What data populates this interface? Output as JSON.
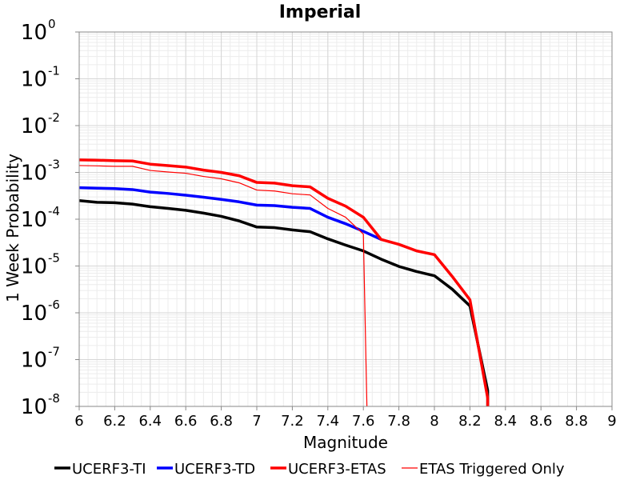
{
  "chart_data": {
    "type": "line",
    "title": "Imperial",
    "xlabel": "Magnitude",
    "ylabel": "1 Week Probability",
    "xlim": [
      6,
      9
    ],
    "ylim": [
      1e-08,
      1
    ],
    "yscale": "log",
    "grid": true,
    "legend_position": "bottom",
    "x_ticks": [
      "6",
      "6.2",
      "6.4",
      "6.6",
      "6.8",
      "7",
      "7.2",
      "7.4",
      "7.6",
      "7.8",
      "8",
      "8.2",
      "8.4",
      "8.6",
      "8.8",
      "9"
    ],
    "y_ticks": [
      {
        "base": "10",
        "exp": "0"
      },
      {
        "base": "10",
        "exp": "-1"
      },
      {
        "base": "10",
        "exp": "-2"
      },
      {
        "base": "10",
        "exp": "-3"
      },
      {
        "base": "10",
        "exp": "-4"
      },
      {
        "base": "10",
        "exp": "-5"
      },
      {
        "base": "10",
        "exp": "-6"
      },
      {
        "base": "10",
        "exp": "-7"
      },
      {
        "base": "10",
        "exp": "-8"
      }
    ],
    "series": [
      {
        "name": "UCERF3-TI",
        "color": "#000000",
        "width": 3.5,
        "points": [
          [
            6.0,
            0.00025
          ],
          [
            6.1,
            0.00023
          ],
          [
            6.2,
            0.000225
          ],
          [
            6.3,
            0.00021
          ],
          [
            6.4,
            0.000185
          ],
          [
            6.5,
            0.00017
          ],
          [
            6.6,
            0.000155
          ],
          [
            6.7,
            0.000135
          ],
          [
            6.8,
            0.000115
          ],
          [
            6.9,
            9.2e-05
          ],
          [
            7.0,
            6.8e-05
          ],
          [
            7.1,
            6.6e-05
          ],
          [
            7.2,
            5.9e-05
          ],
          [
            7.3,
            5.4e-05
          ],
          [
            7.4,
            3.8e-05
          ],
          [
            7.5,
            2.8e-05
          ],
          [
            7.6,
            2.1e-05
          ],
          [
            7.7,
            1.4e-05
          ],
          [
            7.8,
            9.8e-06
          ],
          [
            7.9,
            7.6e-06
          ],
          [
            8.0,
            6.2e-06
          ],
          [
            8.1,
            3.2e-06
          ],
          [
            8.2,
            1.4e-06
          ],
          [
            8.3,
            2.2e-08
          ],
          [
            8.3,
            1e-08
          ]
        ]
      },
      {
        "name": "UCERF3-TD",
        "color": "#0000ff",
        "width": 3.5,
        "points": [
          [
            6.0,
            0.00047
          ],
          [
            6.1,
            0.00046
          ],
          [
            6.2,
            0.00045
          ],
          [
            6.3,
            0.00043
          ],
          [
            6.4,
            0.00038
          ],
          [
            6.5,
            0.000355
          ],
          [
            6.6,
            0.000325
          ],
          [
            6.7,
            0.000295
          ],
          [
            6.8,
            0.000265
          ],
          [
            6.9,
            0.000235
          ],
          [
            7.0,
            0.0002
          ],
          [
            7.1,
            0.000195
          ],
          [
            7.2,
            0.00018
          ],
          [
            7.3,
            0.00017
          ],
          [
            7.4,
            0.00011
          ],
          [
            7.5,
            8e-05
          ],
          [
            7.6,
            5.5e-05
          ],
          [
            7.7,
            3.7e-05
          ]
        ]
      },
      {
        "name": "UCERF3-ETAS",
        "color": "#ff0000",
        "width": 3.5,
        "points": [
          [
            6.0,
            0.00185
          ],
          [
            6.1,
            0.00182
          ],
          [
            6.2,
            0.00178
          ],
          [
            6.3,
            0.00175
          ],
          [
            6.4,
            0.0015
          ],
          [
            6.5,
            0.0014
          ],
          [
            6.6,
            0.0013
          ],
          [
            6.7,
            0.00112
          ],
          [
            6.8,
            0.001
          ],
          [
            6.9,
            0.00085
          ],
          [
            7.0,
            0.00061
          ],
          [
            7.1,
            0.00059
          ],
          [
            7.2,
            0.00052
          ],
          [
            7.3,
            0.00049
          ],
          [
            7.4,
            0.00028
          ],
          [
            7.5,
            0.00019
          ],
          [
            7.6,
            0.00011
          ],
          [
            7.7,
            3.7e-05
          ],
          [
            7.8,
            2.9e-05
          ],
          [
            7.9,
            2.1e-05
          ],
          [
            8.0,
            1.75e-05
          ],
          [
            8.1,
            6e-06
          ],
          [
            8.2,
            1.9e-06
          ],
          [
            8.3,
            1.5e-08
          ],
          [
            8.3,
            1e-08
          ]
        ]
      },
      {
        "name": "ETAS Triggered Only",
        "color": "#ff0000",
        "width": 1.2,
        "points": [
          [
            6.0,
            0.0014
          ],
          [
            6.1,
            0.00138
          ],
          [
            6.2,
            0.00135
          ],
          [
            6.3,
            0.00135
          ],
          [
            6.4,
            0.0011
          ],
          [
            6.5,
            0.00102
          ],
          [
            6.6,
            0.00096
          ],
          [
            6.7,
            0.00082
          ],
          [
            6.8,
            0.00073
          ],
          [
            6.9,
            0.0006
          ],
          [
            7.0,
            0.00042
          ],
          [
            7.1,
            0.0004
          ],
          [
            7.2,
            0.00035
          ],
          [
            7.3,
            0.00033
          ],
          [
            7.4,
            0.00017
          ],
          [
            7.5,
            0.00011
          ],
          [
            7.6,
            4.8e-05
          ],
          [
            7.62,
            1e-08
          ]
        ]
      }
    ]
  }
}
